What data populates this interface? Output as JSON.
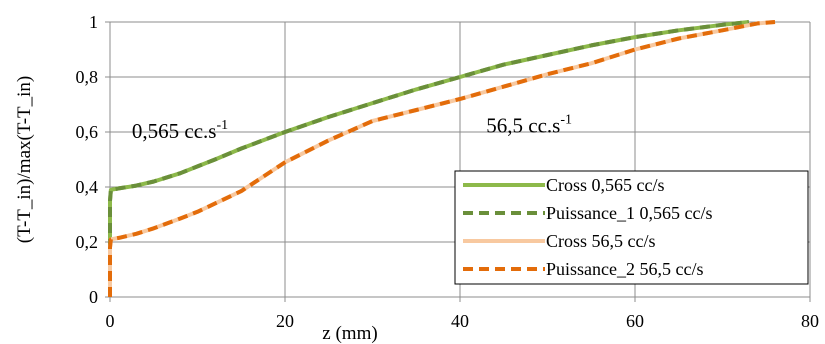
{
  "chart_data": {
    "type": "line",
    "title": "",
    "xlabel": "z (mm)",
    "ylabel": "(T-T_in)/max(T-T_in)",
    "xlim": [
      0,
      80
    ],
    "ylim": [
      0,
      1
    ],
    "x_ticks": [
      "0",
      "20",
      "40",
      "60",
      "80"
    ],
    "y_ticks": [
      "0",
      "0,2",
      "0,4",
      "0,6",
      "0,8",
      "1"
    ],
    "grid": true,
    "legend_position": "bottom-right",
    "annotations": [
      {
        "base": "0,565 cc.s",
        "sup": "-1",
        "x": 2.5,
        "y": 0.6
      },
      {
        "base": "56,5 cc.s",
        "sup": "-1",
        "x": 43,
        "y": 0.62
      }
    ],
    "series": [
      {
        "name": "Cross 0,565 cc/s",
        "color": "#8db94a",
        "dash": "solid",
        "x": [
          0,
          0,
          0.1,
          1,
          3,
          5,
          8,
          10,
          12,
          15,
          20,
          25,
          30,
          35,
          40,
          45,
          50,
          55,
          60,
          65,
          70,
          73
        ],
        "y": [
          0,
          0.35,
          0.39,
          0.395,
          0.405,
          0.42,
          0.45,
          0.475,
          0.5,
          0.54,
          0.6,
          0.655,
          0.705,
          0.755,
          0.8,
          0.845,
          0.88,
          0.915,
          0.945,
          0.97,
          0.99,
          1.0
        ]
      },
      {
        "name": "Puissance_1 0,565 cc/s",
        "color": "#6a8f3a",
        "dash": "dashed",
        "x": [
          0,
          0,
          0.1,
          1,
          3,
          5,
          8,
          10,
          12,
          15,
          20,
          25,
          30,
          35,
          40,
          45,
          50,
          55,
          60,
          65,
          70,
          73
        ],
        "y": [
          0,
          0.35,
          0.39,
          0.395,
          0.405,
          0.42,
          0.45,
          0.475,
          0.5,
          0.54,
          0.6,
          0.655,
          0.705,
          0.755,
          0.8,
          0.845,
          0.88,
          0.915,
          0.945,
          0.97,
          0.99,
          1.0
        ]
      },
      {
        "name": "Cross 56,5 cc/s",
        "color": "#f8c9a0",
        "dash": "solid",
        "x": [
          0,
          0,
          0.1,
          1,
          3,
          5,
          8,
          10,
          15,
          20,
          25,
          30,
          35,
          40,
          45,
          50,
          55,
          60,
          65,
          70,
          74,
          76
        ],
        "y": [
          0,
          0.18,
          0.21,
          0.215,
          0.23,
          0.25,
          0.285,
          0.31,
          0.385,
          0.49,
          0.57,
          0.64,
          0.68,
          0.72,
          0.765,
          0.81,
          0.85,
          0.9,
          0.94,
          0.97,
          0.995,
          1.0
        ]
      },
      {
        "name": "Puissance_2 56,5 cc/s",
        "color": "#e36c0a",
        "dash": "dashed",
        "x": [
          0,
          0,
          0.1,
          1,
          3,
          5,
          8,
          10,
          15,
          20,
          25,
          30,
          35,
          40,
          45,
          50,
          55,
          60,
          65,
          70,
          74,
          76
        ],
        "y": [
          0,
          0.18,
          0.21,
          0.215,
          0.23,
          0.25,
          0.285,
          0.31,
          0.385,
          0.49,
          0.57,
          0.64,
          0.68,
          0.72,
          0.765,
          0.81,
          0.85,
          0.9,
          0.94,
          0.97,
          0.995,
          1.0
        ]
      }
    ]
  }
}
